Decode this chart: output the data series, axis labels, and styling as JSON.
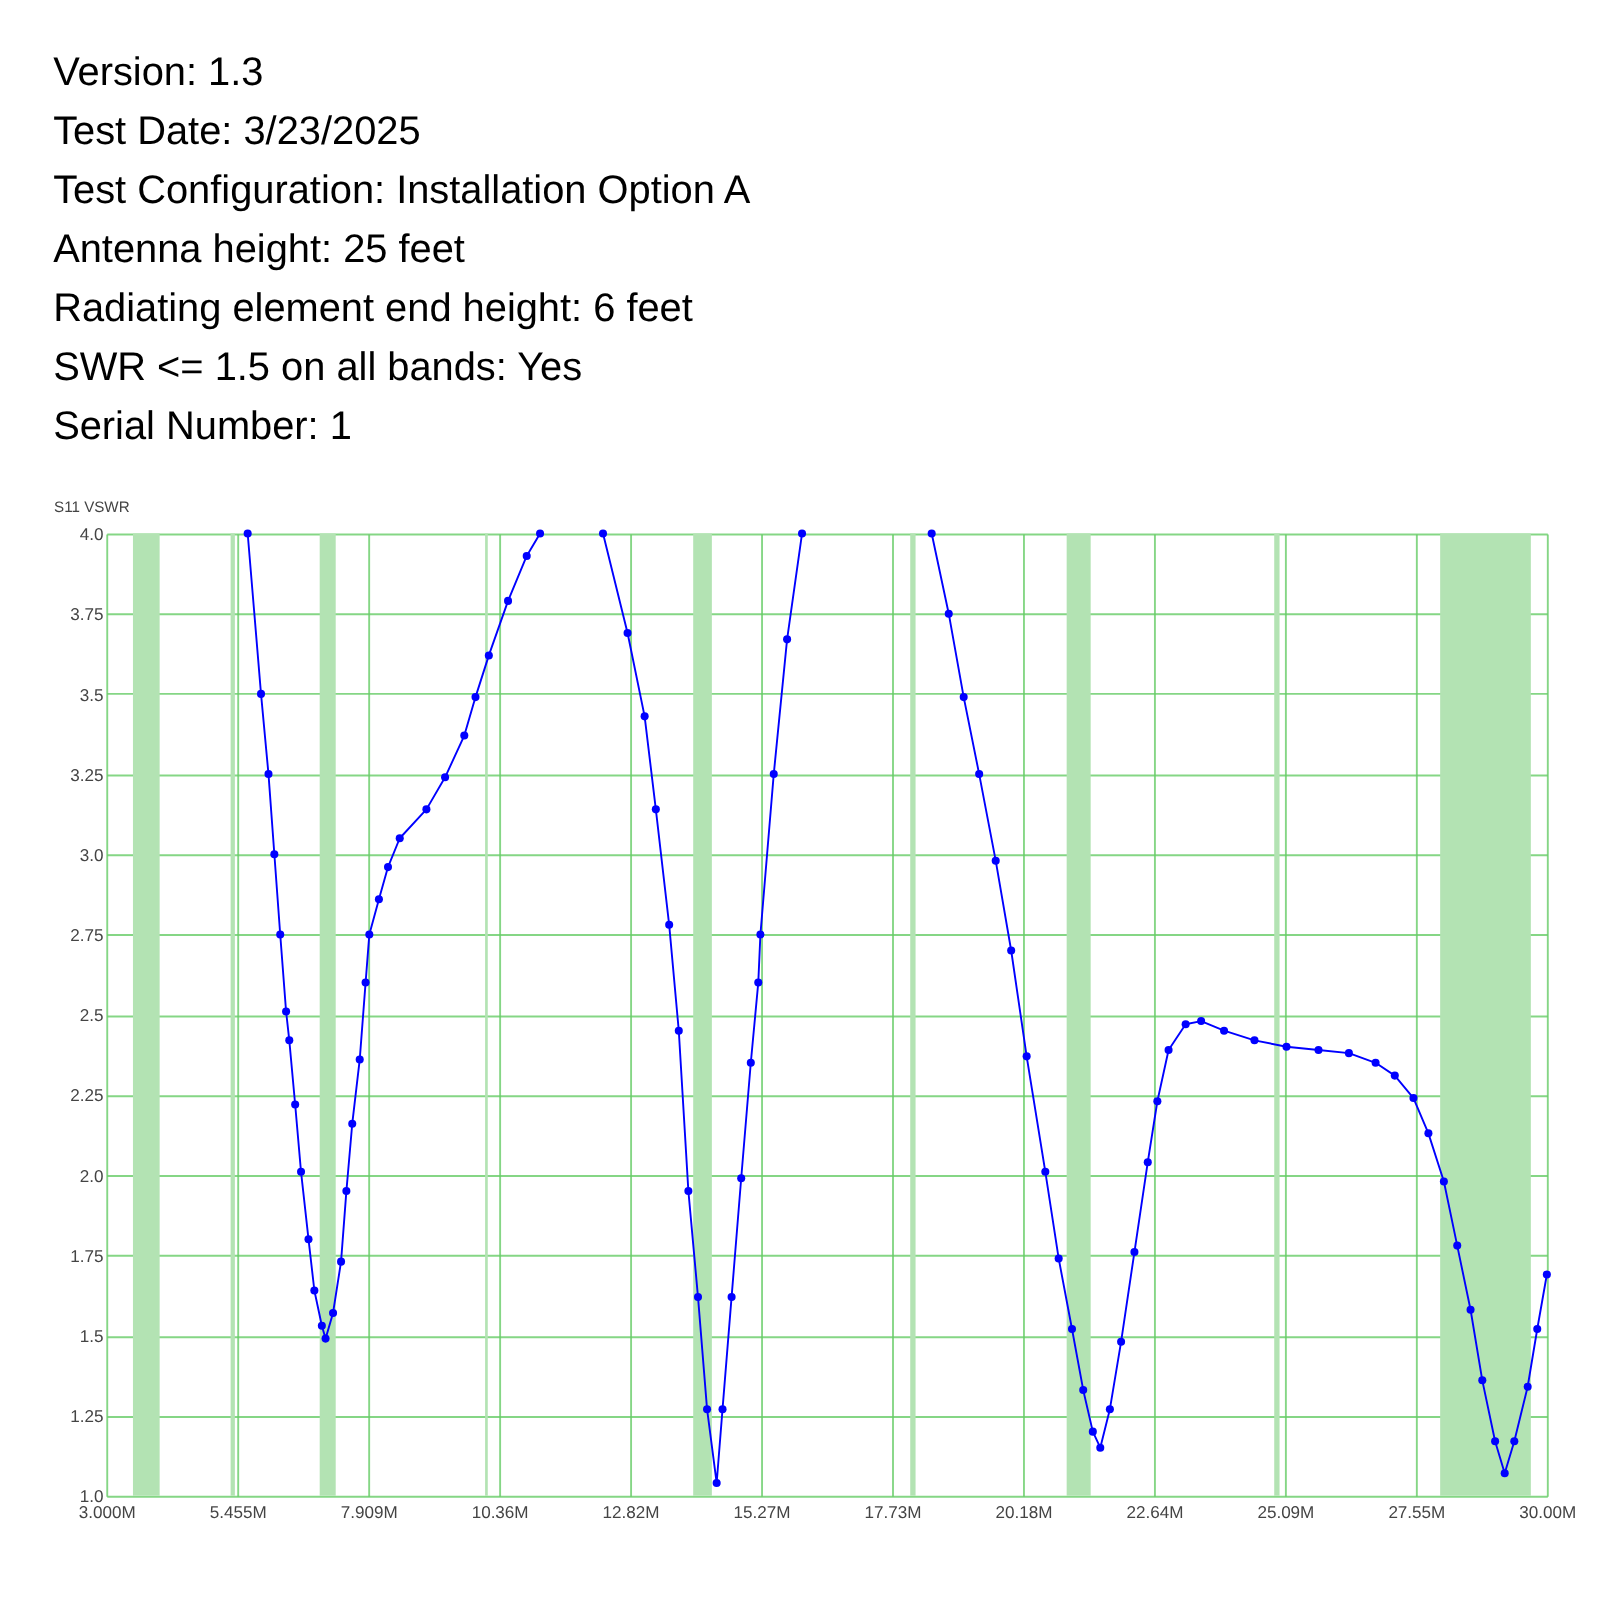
{
  "chart_data": {
    "type": "line",
    "annotations": [
      "Version: 1.3",
      "Test Date: 3/23/2025",
      "Test Configuration: Installation Option A",
      "Antenna height: 25 feet",
      "Radiating element end height: 6 feet",
      "SWR <= 1.5 on all bands: Yes",
      "Serial Number: 1"
    ],
    "ylabel": "S11 VSWR",
    "xlim": [
      3,
      30
    ],
    "ylim": [
      1,
      4
    ],
    "xticks": [
      {
        "value": 3,
        "label": "3.000M"
      },
      {
        "value": 5.4545,
        "label": "5.455M"
      },
      {
        "value": 7.9091,
        "label": "7.909M"
      },
      {
        "value": 10.3636,
        "label": "10.36M"
      },
      {
        "value": 12.8182,
        "label": "12.82M"
      },
      {
        "value": 15.2727,
        "label": "15.27M"
      },
      {
        "value": 17.7273,
        "label": "17.73M"
      },
      {
        "value": 20.1818,
        "label": "20.18M"
      },
      {
        "value": 22.6364,
        "label": "22.64M"
      },
      {
        "value": 25.0909,
        "label": "25.09M"
      },
      {
        "value": 27.5455,
        "label": "27.55M"
      },
      {
        "value": 30,
        "label": "30.00M"
      }
    ],
    "yticks": [
      {
        "value": 4,
        "label": "4.0"
      },
      3.75,
      3.5,
      3.25,
      {
        "value": 3,
        "label": "3.0"
      },
      2.75,
      2.5,
      2.25,
      {
        "value": 2,
        "label": "2.0"
      },
      1.75,
      1.5,
      1.25,
      {
        "value": 1,
        "label": "1.0"
      }
    ],
    "grid": true,
    "marker": "circle",
    "line_style": "solid",
    "bands": [
      {
        "axis": "x",
        "from": 3.5,
        "to": 4.0,
        "color": "#b3e3b3"
      },
      {
        "axis": "x",
        "from": 5.33,
        "to": 5.41,
        "color": "#b3e3b3"
      },
      {
        "axis": "x",
        "from": 7.0,
        "to": 7.3,
        "color": "#b3e3b3"
      },
      {
        "axis": "x",
        "from": 10.1,
        "to": 10.15,
        "color": "#b3e3b3"
      },
      {
        "axis": "x",
        "from": 14.0,
        "to": 14.35,
        "color": "#b3e3b3"
      },
      {
        "axis": "x",
        "from": 18.068,
        "to": 18.168,
        "color": "#b3e3b3"
      },
      {
        "axis": "x",
        "from": 21.0,
        "to": 21.45,
        "color": "#b3e3b3"
      },
      {
        "axis": "x",
        "from": 24.89,
        "to": 24.99,
        "color": "#b3e3b3"
      },
      {
        "axis": "x",
        "from": 28.0,
        "to": 29.7,
        "color": "#b3e3b3"
      }
    ],
    "series": [
      {
        "color": "#0000ff",
        "x": [
          5.65,
          5.9,
          6.04,
          6.15,
          6.26,
          6.37,
          6.43,
          6.54,
          6.65,
          6.79,
          6.9,
          7.04,
          7.11,
          7.25,
          7.4,
          7.5,
          7.61,
          7.75,
          7.86,
          7.93,
          8.11,
          8.28,
          8.5,
          9.0,
          9.35,
          9.71,
          9.92,
          10.17,
          10.53,
          10.88,
          11.13,
          11.7,
          12.31,
          12.77,
          13.09,
          13.3,
          13.55,
          13.73,
          13.91,
          14.09,
          14.26,
          14.44,
          14.55,
          14.72,
          14.9,
          15.08,
          15.22,
          15.26,
          15.51,
          15.76,
          16.04,
          17.2,
          18.47,
          18.79,
          19.07,
          19.36,
          19.67,
          19.96,
          20.25,
          20.6,
          20.85,
          21.1,
          21.31,
          21.49,
          21.63,
          21.81,
          22.02,
          22.27,
          22.52,
          22.7,
          22.91,
          23.23,
          23.52,
          23.95,
          24.52,
          25.12,
          25.72,
          26.29,
          26.79,
          27.15,
          27.5,
          27.78,
          28.07,
          28.32,
          28.57,
          28.79,
          29.03,
          29.21,
          29.39,
          29.64,
          29.82,
          30.0
        ],
        "values": [
          4.0,
          3.5,
          3.25,
          3.0,
          2.75,
          2.51,
          2.42,
          2.22,
          2.01,
          1.8,
          1.64,
          1.53,
          1.49,
          1.57,
          1.73,
          1.95,
          2.16,
          2.36,
          2.6,
          2.75,
          2.86,
          2.96,
          3.05,
          3.14,
          3.24,
          3.37,
          3.49,
          3.62,
          3.79,
          3.93,
          4.0,
          null,
          4.0,
          3.69,
          3.43,
          3.14,
          2.78,
          2.45,
          1.95,
          1.62,
          1.27,
          1.04,
          1.27,
          1.62,
          1.99,
          2.35,
          2.6,
          2.75,
          3.25,
          3.67,
          4.0,
          null,
          4.0,
          3.75,
          3.49,
          3.25,
          2.98,
          2.7,
          2.37,
          2.01,
          1.74,
          1.52,
          1.33,
          1.2,
          1.15,
          1.27,
          1.48,
          1.76,
          2.04,
          2.23,
          2.39,
          2.47,
          2.48,
          2.45,
          2.42,
          2.4,
          2.39,
          2.38,
          2.35,
          2.31,
          2.24,
          2.13,
          1.98,
          1.78,
          1.58,
          1.36,
          1.17,
          1.07,
          1.17,
          1.34,
          1.52,
          1.69
        ]
      }
    ]
  }
}
